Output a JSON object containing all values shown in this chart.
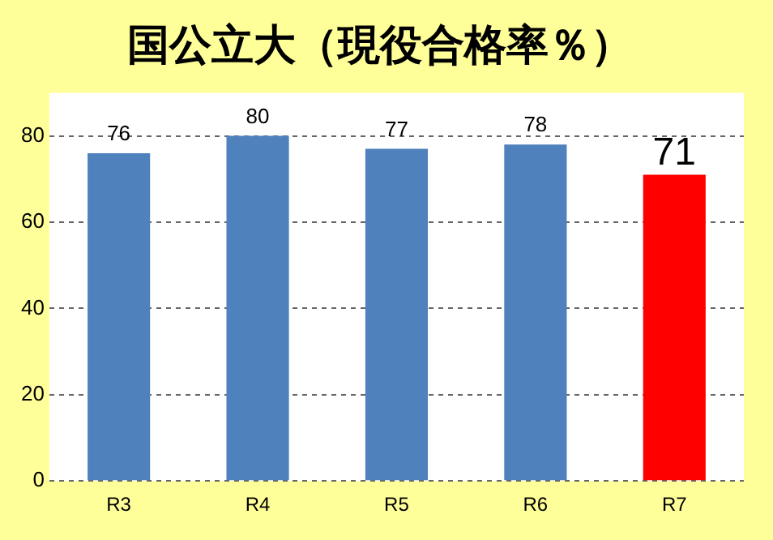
{
  "chart_data": {
    "type": "bar",
    "title": "国公立大（現役合格率％）",
    "categories": [
      "R3",
      "R4",
      "R5",
      "R6",
      "R7"
    ],
    "values": [
      76,
      80,
      77,
      78,
      71
    ],
    "colors": [
      "#4f81bd",
      "#4f81bd",
      "#4f81bd",
      "#4f81bd",
      "#ff0000"
    ],
    "ylim": [
      0,
      90
    ],
    "yticks": [
      0,
      20,
      40,
      60,
      80
    ],
    "grid": "y",
    "data_labels": true,
    "legend": false
  }
}
